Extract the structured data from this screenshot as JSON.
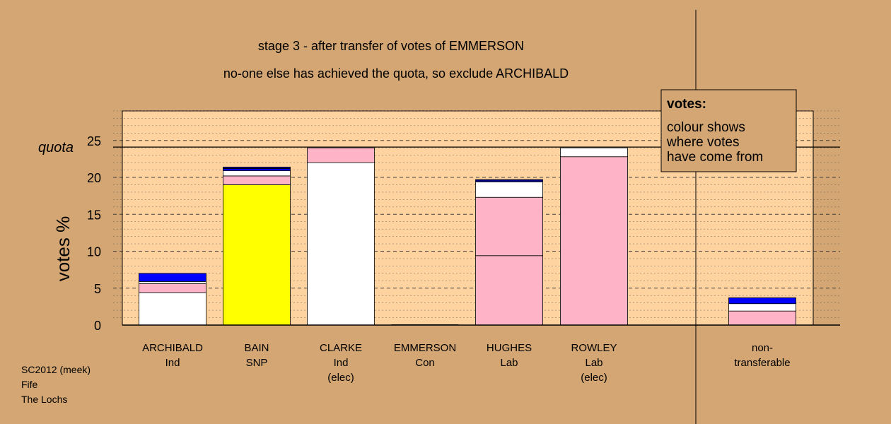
{
  "chart_data": {
    "type": "bar",
    "stacked": true,
    "title": "stage 3 - after transfer of votes of EMMERSON",
    "subtitle": "no-one else has achieved the quota, so exclude ARCHIBALD",
    "ylabel": "votes %",
    "ylim": [
      0,
      29
    ],
    "yticks": [
      0,
      5,
      10,
      15,
      20,
      25
    ],
    "quota": 24.1,
    "quota_label": "quota",
    "grid": "dashed-horizontal",
    "categories": [
      {
        "name": "ARCHIBALD",
        "line2": "Ind",
        "line3": ""
      },
      {
        "name": "BAIN",
        "line2": "SNP",
        "line3": ""
      },
      {
        "name": "CLARKE",
        "line2": "Ind",
        "line3": "(elec)"
      },
      {
        "name": "EMMERSON",
        "line2": "Con",
        "line3": ""
      },
      {
        "name": "HUGHES",
        "line2": "Lab",
        "line3": ""
      },
      {
        "name": "ROWLEY",
        "line2": "Lab",
        "line3": "(elec)"
      },
      {
        "name": "non-",
        "line2": "transferable",
        "line3": ""
      }
    ],
    "segments": [
      [
        {
          "color": "#ffffff",
          "value": 4.4
        },
        {
          "color": "#ffb3c6",
          "value": 1.2
        },
        {
          "color": "#ffffff",
          "value": 0.3
        },
        {
          "color": "#0000ff",
          "value": 1.1
        }
      ],
      [
        {
          "color": "#ffff00",
          "value": 19.0
        },
        {
          "color": "#ffb3c6",
          "value": 1.2
        },
        {
          "color": "#ffffff",
          "value": 0.7
        },
        {
          "color": "#0000ff",
          "value": 0.3
        },
        {
          "color": "#000080",
          "value": 0.2
        }
      ],
      [
        {
          "color": "#ffffff",
          "value": 22.0
        },
        {
          "color": "#ffb3c6",
          "value": 2.0
        }
      ],
      [],
      [
        {
          "color": "#ffb3c6",
          "value": 9.4
        },
        {
          "color": "#ffb3c6",
          "value": 7.9
        },
        {
          "color": "#ffffff",
          "value": 2.1
        },
        {
          "color": "#000080",
          "value": 0.3
        }
      ],
      [
        {
          "color": "#ffb3c6",
          "value": 22.8
        },
        {
          "color": "#ffffff",
          "value": 1.2
        }
      ],
      [
        {
          "color": "#ffb3c6",
          "value": 1.9
        },
        {
          "color": "#ffffff",
          "value": 1.0
        },
        {
          "color": "#0000ff",
          "value": 0.8
        }
      ]
    ],
    "colors": {
      "background": "#d3a673",
      "plot_background": "#ffd3a0",
      "border": "#000000"
    }
  },
  "legend": {
    "title": "votes:",
    "lines": [
      "colour shows",
      "where votes",
      "have come from"
    ]
  },
  "footer": {
    "lines": [
      "SC2012 (meek)",
      "Fife",
      "The Lochs"
    ]
  }
}
